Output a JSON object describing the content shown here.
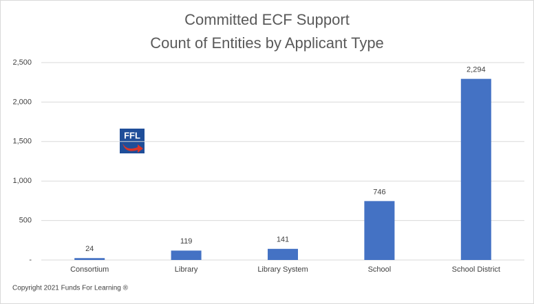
{
  "chart_data": {
    "type": "bar",
    "title": "Committed ECF Support",
    "subtitle": "Count of Entities by Applicant Type",
    "categories": [
      "Consortium",
      "Library",
      "Library System",
      "School",
      "School District"
    ],
    "values": [
      24,
      119,
      141,
      746,
      2294
    ],
    "value_labels": [
      "24",
      "119",
      "141",
      "746",
      "2,294"
    ],
    "color": "#4472c4",
    "ylim": [
      0,
      2500
    ],
    "yticks": [
      {
        "value": 0,
        "label": "-"
      },
      500,
      {
        "value": 1000,
        "label": "1,000"
      },
      {
        "value": 1500,
        "label": "1,500"
      },
      {
        "value": 2000,
        "label": "2,000"
      },
      {
        "value": 2500,
        "label": "2,500"
      }
    ],
    "grid": true,
    "logo": "FFL",
    "footer": "Copyright 2021 Funds For Learning ®"
  }
}
